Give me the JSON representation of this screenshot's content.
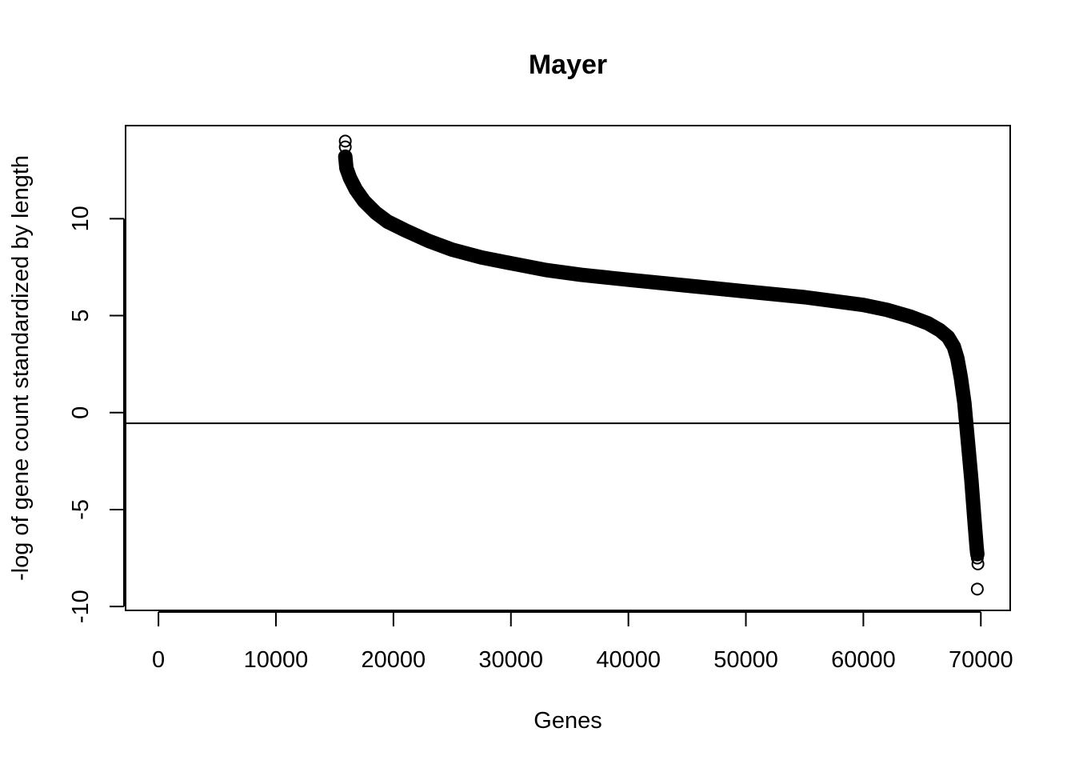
{
  "chart_data": {
    "type": "scatter",
    "title": "Mayer",
    "xlabel": "Genes",
    "ylabel": "-log of gene count standardized by length",
    "xlim": [
      -2800,
      72500
    ],
    "ylim": [
      -10.2,
      14.8
    ],
    "x_ticks": [
      0,
      10000,
      20000,
      30000,
      40000,
      50000,
      60000,
      70000
    ],
    "x_tick_labels": [
      "0",
      "10000",
      "20000",
      "30000",
      "40000",
      "50000",
      "60000",
      "70000"
    ],
    "y_ticks": [
      -10,
      -5,
      0,
      5,
      10
    ],
    "y_tick_labels": [
      "-10",
      "-5",
      "0",
      "5",
      "10"
    ],
    "reference_line_y": -0.55,
    "grid": false,
    "legend": "none",
    "curve": [
      [
        15900,
        13.2
      ],
      [
        16000,
        12.6
      ],
      [
        16300,
        12.1
      ],
      [
        16800,
        11.5
      ],
      [
        17500,
        10.9
      ],
      [
        18500,
        10.3
      ],
      [
        19500,
        9.85
      ],
      [
        21000,
        9.4
      ],
      [
        23000,
        8.85
      ],
      [
        25000,
        8.4
      ],
      [
        27500,
        8.0
      ],
      [
        30000,
        7.7
      ],
      [
        33000,
        7.35
      ],
      [
        36000,
        7.1
      ],
      [
        40000,
        6.85
      ],
      [
        45000,
        6.55
      ],
      [
        50000,
        6.25
      ],
      [
        55000,
        5.95
      ],
      [
        60000,
        5.55
      ],
      [
        62000,
        5.3
      ],
      [
        64000,
        4.95
      ],
      [
        65500,
        4.6
      ],
      [
        66500,
        4.25
      ],
      [
        67200,
        3.9
      ],
      [
        67700,
        3.4
      ],
      [
        68000,
        2.8
      ],
      [
        68300,
        1.8
      ],
      [
        68600,
        0.5
      ],
      [
        68900,
        -1.5
      ],
      [
        69200,
        -3.5
      ],
      [
        69450,
        -5.5
      ],
      [
        69650,
        -7.0
      ],
      [
        69700,
        -7.3
      ]
    ],
    "outliers": [
      [
        15900,
        14.0
      ],
      [
        15900,
        13.7
      ],
      [
        69700,
        -7.5
      ],
      [
        69750,
        -7.8
      ],
      [
        69700,
        -9.1
      ]
    ]
  }
}
